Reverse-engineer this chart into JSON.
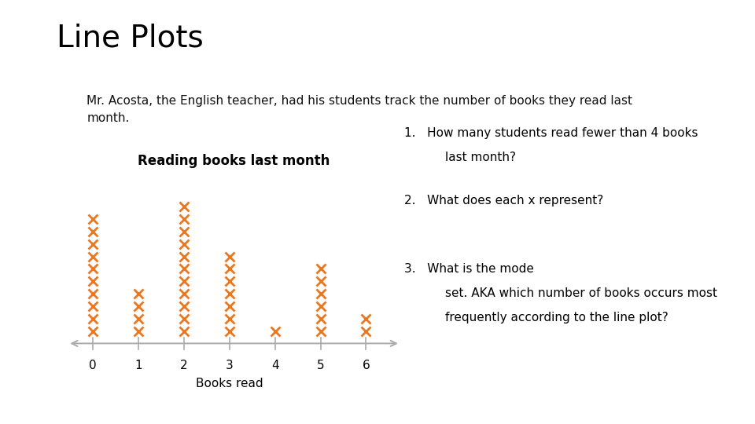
{
  "title": "Line Plots",
  "description_line1": "Mr. Acosta, the English teacher, had his students track the number of books they read last",
  "description_line2": "month.",
  "plot_title": "Reading books last month",
  "xlabel": "Books read",
  "counts": [
    10,
    4,
    11,
    7,
    1,
    6,
    2
  ],
  "x_values": [
    0,
    1,
    2,
    3,
    4,
    5,
    6
  ],
  "marker_color": "#E87722",
  "axis_color": "#aaaaaa",
  "background_color": "#ffffff",
  "title_fontsize": 28,
  "desc_fontsize": 11,
  "plot_title_fontsize": 12,
  "tick_fontsize": 11,
  "question_fontsize": 11
}
